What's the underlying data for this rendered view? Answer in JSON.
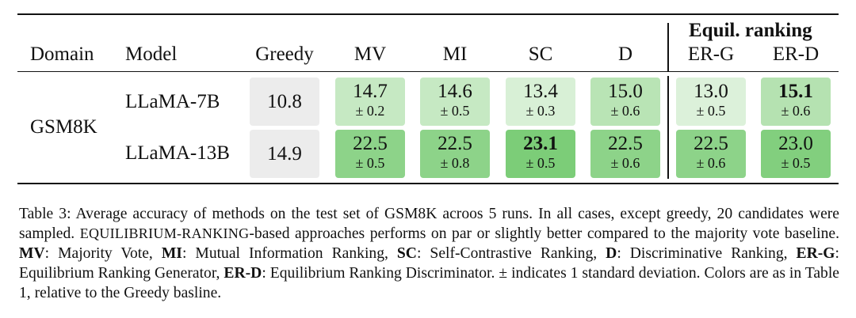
{
  "table": {
    "group_header": "Equil. ranking",
    "headers": {
      "domain": "Domain",
      "model": "Model",
      "greedy": "Greedy",
      "mv": "MV",
      "mi": "MI",
      "sc": "SC",
      "d": "D",
      "erg": "ER-G",
      "erd": "ER-D"
    },
    "domain": "GSM8K",
    "rows": [
      {
        "model": "LLaMA-7B",
        "greedy": "10.8",
        "mv": {
          "mean": "14.7",
          "std": "± 0.2"
        },
        "mi": {
          "mean": "14.6",
          "std": "± 0.5"
        },
        "sc": {
          "mean": "13.4",
          "std": "± 0.3"
        },
        "d": {
          "mean": "15.0",
          "std": "± 0.6"
        },
        "erg": {
          "mean": "13.0",
          "std": "± 0.5"
        },
        "erd": {
          "mean": "15.1",
          "std": "± 0.6"
        }
      },
      {
        "model": "LLaMA-13B",
        "greedy": "14.9",
        "mv": {
          "mean": "22.5",
          "std": "± 0.5"
        },
        "mi": {
          "mean": "22.5",
          "std": "± 0.8"
        },
        "sc": {
          "mean": "23.1",
          "std": "± 0.5"
        },
        "d": {
          "mean": "22.5",
          "std": "± 0.6"
        },
        "erg": {
          "mean": "22.5",
          "std": "± 0.6"
        },
        "erd": {
          "mean": "23.0",
          "std": "± 0.5"
        }
      }
    ],
    "colors": {
      "greedy": "#ececec",
      "light": "#d6efd4",
      "mid": "#bfe6bc",
      "strong": "#8fd58b",
      "strong2": "#7fce7b"
    }
  },
  "caption": {
    "p1": "Table 3: Average accuracy of methods on the test set of GSM8K acroos 5 runs. In all cases, except greedy, 20 candidates were sampled. ",
    "p2": "EQUILIBRIUM-RANKING",
    "p3": "-based approaches performs on par or slightly better compared to the majority vote baseline. ",
    "mv_b": "MV",
    "mv_t": ": Majority Vote, ",
    "mi_b": "MI",
    "mi_t": ": Mutual Information Ranking, ",
    "sc_b": "SC",
    "sc_t": ": Self-Contrastive Ranking, ",
    "d_b": "D",
    "d_t": ": Discriminative Ranking, ",
    "erg_b": "ER-G",
    "erg_t": ": Equilibrium Ranking Generator, ",
    "erd_b": "ER-D",
    "erd_t": ": Equilibrium Ranking Discriminator. ± indicates 1 standard deviation. Colors are as in Table 1, relative to the Greedy basline."
  }
}
